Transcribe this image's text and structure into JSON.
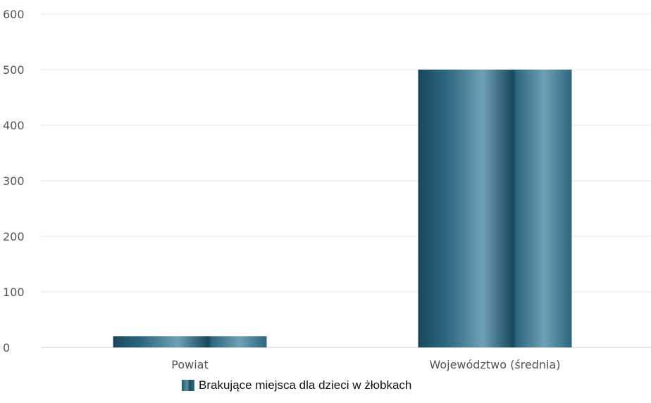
{
  "chart_data": {
    "type": "bar",
    "categories": [
      "Powiat",
      "Województwo (średnia)"
    ],
    "series": [
      {
        "name": "Brakujące miejsca dla dzieci w żłobkach",
        "values": [
          20,
          500
        ]
      }
    ],
    "yticks": [
      "0",
      "100",
      "200",
      "300",
      "400",
      "500",
      "600"
    ],
    "ylim": [
      0,
      600
    ],
    "grid": true,
    "legend_position": "bottom",
    "colors": {
      "bar": "#2c6680",
      "bar_light": "#6fa0b4",
      "bar_dark": "#18475c",
      "grid": "#e6e6e6",
      "axis": "#cccccc"
    }
  }
}
